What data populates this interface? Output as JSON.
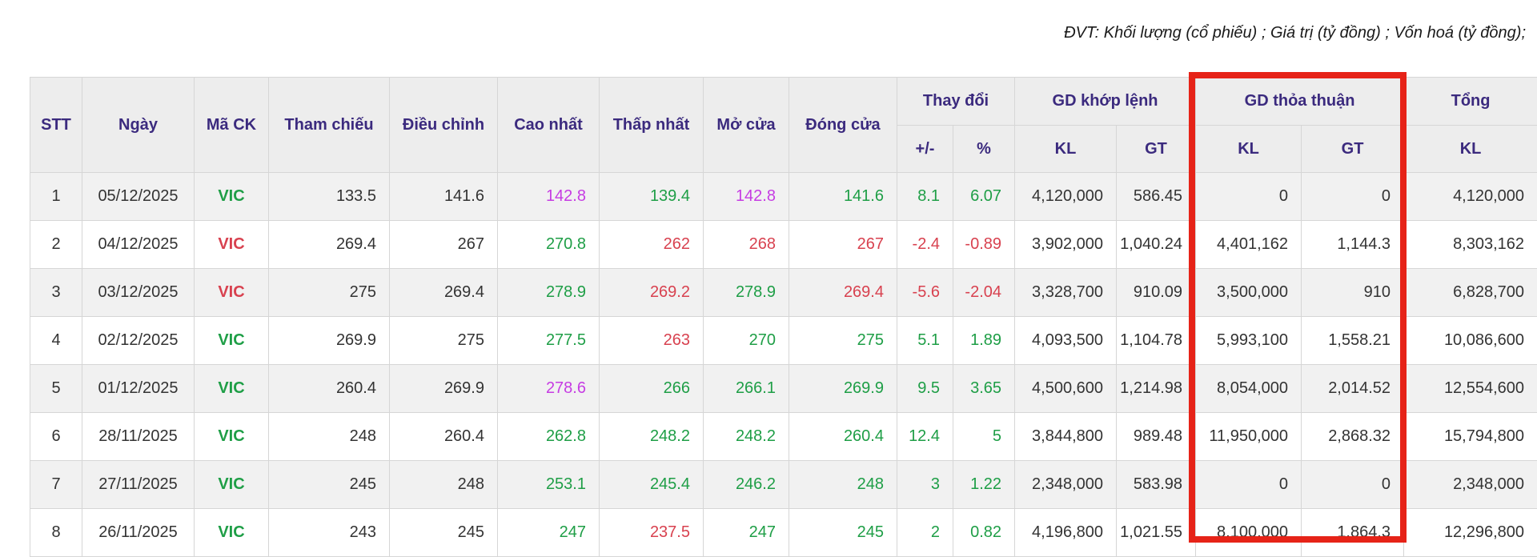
{
  "unit_note": "ĐVT: Khối lượng (cổ phiếu) ; Giá trị (tỷ đồng) ; Vốn hoá (tỷ đồng);",
  "colors": {
    "green": "#1e9e46",
    "red": "#d8414f",
    "purple": "#c63ce3",
    "black": "#333333",
    "header_text": "#3b2a7e",
    "annotation_red": "#e62318"
  },
  "table": {
    "headers": {
      "stt": "STT",
      "ngay": "Ngày",
      "ma_ck": "Mã CK",
      "tham_chieu": "Tham chiếu",
      "dieu_chinh": "Điều chỉnh",
      "cao_nhat": "Cao nhất",
      "thap_nhat": "Thấp nhất",
      "mo_cua": "Mở cửa",
      "dong_cua": "Đóng cửa",
      "thay_doi": "Thay đổi",
      "gd_khop_lenh": "GD khớp lệnh",
      "gd_thoa_thuan": "GD thỏa thuận",
      "tong": "Tổng",
      "plus_minus": "+/-",
      "percent": "%",
      "kl": "KL",
      "gt": "GT"
    },
    "rows": [
      {
        "stt": "1",
        "date": "05/12/2025",
        "ticker": "VIC",
        "ticker_color": "green",
        "ref": "133.5",
        "adj": "141.6",
        "high": "142.8",
        "high_color": "purple",
        "low": "139.4",
        "low_color": "green",
        "open": "142.8",
        "open_color": "purple",
        "close": "141.6",
        "close_color": "green",
        "change": "8.1",
        "change_color": "green",
        "pct": "6.07",
        "pct_color": "green",
        "kl_khop": "4,120,000",
        "gt_khop": "586.45",
        "kl_tt": "0",
        "gt_tt": "0",
        "kl_tong": "4,120,000"
      },
      {
        "stt": "2",
        "date": "04/12/2025",
        "ticker": "VIC",
        "ticker_color": "red",
        "ref": "269.4",
        "adj": "267",
        "high": "270.8",
        "high_color": "green",
        "low": "262",
        "low_color": "red",
        "open": "268",
        "open_color": "red",
        "close": "267",
        "close_color": "red",
        "change": "-2.4",
        "change_color": "red",
        "pct": "-0.89",
        "pct_color": "red",
        "kl_khop": "3,902,000",
        "gt_khop": "1,040.24",
        "kl_tt": "4,401,162",
        "gt_tt": "1,144.3",
        "kl_tong": "8,303,162"
      },
      {
        "stt": "3",
        "date": "03/12/2025",
        "ticker": "VIC",
        "ticker_color": "red",
        "ref": "275",
        "adj": "269.4",
        "high": "278.9",
        "high_color": "green",
        "low": "269.2",
        "low_color": "red",
        "open": "278.9",
        "open_color": "green",
        "close": "269.4",
        "close_color": "red",
        "change": "-5.6",
        "change_color": "red",
        "pct": "-2.04",
        "pct_color": "red",
        "kl_khop": "3,328,700",
        "gt_khop": "910.09",
        "kl_tt": "3,500,000",
        "gt_tt": "910",
        "kl_tong": "6,828,700"
      },
      {
        "stt": "4",
        "date": "02/12/2025",
        "ticker": "VIC",
        "ticker_color": "green",
        "ref": "269.9",
        "adj": "275",
        "high": "277.5",
        "high_color": "green",
        "low": "263",
        "low_color": "red",
        "open": "270",
        "open_color": "green",
        "close": "275",
        "close_color": "green",
        "change": "5.1",
        "change_color": "green",
        "pct": "1.89",
        "pct_color": "green",
        "kl_khop": "4,093,500",
        "gt_khop": "1,104.78",
        "kl_tt": "5,993,100",
        "gt_tt": "1,558.21",
        "kl_tong": "10,086,600"
      },
      {
        "stt": "5",
        "date": "01/12/2025",
        "ticker": "VIC",
        "ticker_color": "green",
        "ref": "260.4",
        "adj": "269.9",
        "high": "278.6",
        "high_color": "purple",
        "low": "266",
        "low_color": "green",
        "open": "266.1",
        "open_color": "green",
        "close": "269.9",
        "close_color": "green",
        "change": "9.5",
        "change_color": "green",
        "pct": "3.65",
        "pct_color": "green",
        "kl_khop": "4,500,600",
        "gt_khop": "1,214.98",
        "kl_tt": "8,054,000",
        "gt_tt": "2,014.52",
        "kl_tong": "12,554,600"
      },
      {
        "stt": "6",
        "date": "28/11/2025",
        "ticker": "VIC",
        "ticker_color": "green",
        "ref": "248",
        "adj": "260.4",
        "high": "262.8",
        "high_color": "green",
        "low": "248.2",
        "low_color": "green",
        "open": "248.2",
        "open_color": "green",
        "close": "260.4",
        "close_color": "green",
        "change": "12.4",
        "change_color": "green",
        "pct": "5",
        "pct_color": "green",
        "kl_khop": "3,844,800",
        "gt_khop": "989.48",
        "kl_tt": "11,950,000",
        "gt_tt": "2,868.32",
        "kl_tong": "15,794,800"
      },
      {
        "stt": "7",
        "date": "27/11/2025",
        "ticker": "VIC",
        "ticker_color": "green",
        "ref": "245",
        "adj": "248",
        "high": "253.1",
        "high_color": "green",
        "low": "245.4",
        "low_color": "green",
        "open": "246.2",
        "open_color": "green",
        "close": "248",
        "close_color": "green",
        "change": "3",
        "change_color": "green",
        "pct": "1.22",
        "pct_color": "green",
        "kl_khop": "2,348,000",
        "gt_khop": "583.98",
        "kl_tt": "0",
        "gt_tt": "0",
        "kl_tong": "2,348,000"
      },
      {
        "stt": "8",
        "date": "26/11/2025",
        "ticker": "VIC",
        "ticker_color": "green",
        "ref": "243",
        "adj": "245",
        "high": "247",
        "high_color": "green",
        "low": "237.5",
        "low_color": "red",
        "open": "247",
        "open_color": "green",
        "close": "245",
        "close_color": "green",
        "change": "2",
        "change_color": "green",
        "pct": "0.82",
        "pct_color": "green",
        "kl_khop": "4,196,800",
        "gt_khop": "1,021.55",
        "kl_tt": "8,100,000",
        "gt_tt": "1,864.3",
        "kl_tong": "12,296,800"
      }
    ]
  }
}
